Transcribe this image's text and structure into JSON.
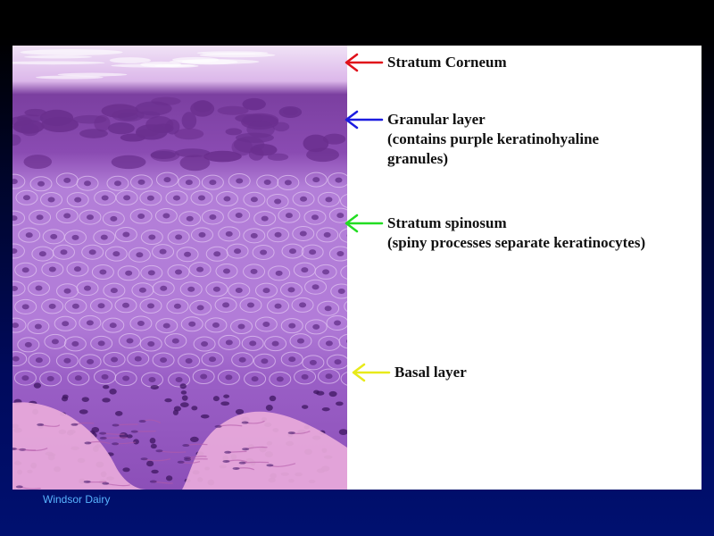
{
  "labels": [
    {
      "title": "Stratum Corneum",
      "detail": [],
      "arrow_color": "#e0101a"
    },
    {
      "title": "Granular layer",
      "detail": [
        "(contains purple keratinohyaline",
        "granules)"
      ],
      "arrow_color": "#1c1ce0"
    },
    {
      "title": "Stratum spinosum",
      "detail": [
        "(spiny processes separate keratinocytes)"
      ],
      "arrow_color": "#22dd22"
    },
    {
      "title": "Basal layer",
      "detail": [],
      "arrow_color": "#e8ea1a"
    }
  ],
  "footer": {
    "credit": "Windsor Dairy"
  },
  "colors": {
    "corneum": "#ead2f0",
    "granular": "#6a2f8e",
    "spinosum": "#b07ad8",
    "basal": "#7a3ea6",
    "dermis": "#e7a6d8"
  }
}
